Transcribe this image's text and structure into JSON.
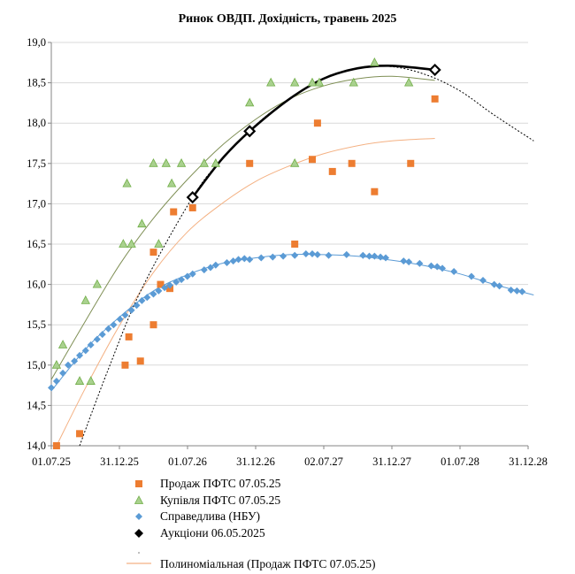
{
  "chart_data": {
    "type": "scatter",
    "title": "Ринок ОВДП. Дохідність, травень 2025",
    "xlabel": "",
    "ylabel": "",
    "x_axis": {
      "min": "2025-07-01",
      "max": "2028-12-31",
      "tick_labels": [
        "01.07.25",
        "31.12.25",
        "01.07.26",
        "31.12.26",
        "02.07.27",
        "31.12.27",
        "01.07.28",
        "31.12.28"
      ]
    },
    "y_axis": {
      "min": 14.0,
      "max": 19.0,
      "tick_labels": [
        "14,0",
        "14,5",
        "15,0",
        "15,5",
        "16,0",
        "16,5",
        "17,0",
        "17,5",
        "18,0",
        "18,5",
        "19,0"
      ]
    },
    "grid": "horizontal",
    "legend_placement": "bottom",
    "colors": {
      "sell": "#ED7D31",
      "buy": "#A9D18E",
      "buy_edge": "#70AD47",
      "fair": "#5B9BD5",
      "auction": "#000000",
      "sell_trend": "#F4B183",
      "buy_trend": "#7F8F55",
      "fair_trend": "#5B9BD5"
    },
    "series": [
      {
        "name": "Продаж ПФТС 07.05.25",
        "marker": "square",
        "points": [
          [
            "2025-07-15",
            14.0
          ],
          [
            "2025-09-15",
            14.15
          ],
          [
            "2026-01-15",
            15.0
          ],
          [
            "2026-01-25",
            15.35
          ],
          [
            "2026-02-25",
            15.05
          ],
          [
            "2026-04-01",
            15.5
          ],
          [
            "2026-04-01",
            16.4
          ],
          [
            "2026-04-20",
            16.0
          ],
          [
            "2026-05-15",
            15.95
          ],
          [
            "2026-05-25",
            16.9
          ],
          [
            "2026-07-15",
            16.95
          ],
          [
            "2026-12-15",
            17.5
          ],
          [
            "2027-04-15",
            16.5
          ],
          [
            "2027-06-01",
            17.55
          ],
          [
            "2027-06-15",
            18.0
          ],
          [
            "2027-07-25",
            17.4
          ],
          [
            "2027-09-15",
            17.5
          ],
          [
            "2027-11-15",
            17.15
          ],
          [
            "2028-02-20",
            17.5
          ],
          [
            "2028-04-25",
            18.3
          ]
        ]
      },
      {
        "name": "Купівля ПФТС 07.05.25",
        "marker": "triangle",
        "points": [
          [
            "2025-07-15",
            15.0
          ],
          [
            "2025-08-01",
            15.25
          ],
          [
            "2025-09-15",
            14.8
          ],
          [
            "2025-10-01",
            15.8
          ],
          [
            "2025-10-15",
            14.8
          ],
          [
            "2025-11-01",
            16.0
          ],
          [
            "2026-01-10",
            16.5
          ],
          [
            "2026-01-20",
            17.25
          ],
          [
            "2026-02-01",
            16.5
          ],
          [
            "2026-03-01",
            16.75
          ],
          [
            "2026-04-01",
            17.5
          ],
          [
            "2026-04-15",
            16.5
          ],
          [
            "2026-05-05",
            17.5
          ],
          [
            "2026-05-20",
            17.25
          ],
          [
            "2026-06-15",
            17.5
          ],
          [
            "2026-08-15",
            17.5
          ],
          [
            "2026-09-15",
            17.5
          ],
          [
            "2026-12-15",
            18.25
          ],
          [
            "2027-02-10",
            18.5
          ],
          [
            "2027-04-15",
            18.5
          ],
          [
            "2027-04-15",
            17.5
          ],
          [
            "2027-06-01",
            18.5
          ],
          [
            "2027-06-20",
            18.5
          ],
          [
            "2027-09-20",
            18.5
          ],
          [
            "2027-11-15",
            18.75
          ],
          [
            "2028-02-15",
            18.5
          ]
        ]
      },
      {
        "name": "Справедлива (НБУ)",
        "marker": "diamond",
        "points": [
          [
            "2025-07-01",
            14.72
          ],
          [
            "2025-07-15",
            14.8
          ],
          [
            "2025-08-01",
            14.9
          ],
          [
            "2025-08-15",
            15.0
          ],
          [
            "2025-09-01",
            15.05
          ],
          [
            "2025-09-15",
            15.12
          ],
          [
            "2025-10-01",
            15.18
          ],
          [
            "2025-10-15",
            15.25
          ],
          [
            "2025-11-01",
            15.32
          ],
          [
            "2025-11-15",
            15.38
          ],
          [
            "2025-12-01",
            15.45
          ],
          [
            "2025-12-15",
            15.5
          ],
          [
            "2026-01-01",
            15.57
          ],
          [
            "2026-01-15",
            15.62
          ],
          [
            "2026-02-01",
            15.68
          ],
          [
            "2026-02-15",
            15.74
          ],
          [
            "2026-03-01",
            15.8
          ],
          [
            "2026-03-15",
            15.84
          ],
          [
            "2026-04-01",
            15.88
          ],
          [
            "2026-04-15",
            15.92
          ],
          [
            "2026-05-01",
            15.96
          ],
          [
            "2026-05-15",
            15.99
          ],
          [
            "2026-06-01",
            16.03
          ],
          [
            "2026-06-15",
            16.06
          ],
          [
            "2026-07-01",
            16.1
          ],
          [
            "2026-07-15",
            16.13
          ],
          [
            "2026-08-15",
            16.18
          ],
          [
            "2026-09-01",
            16.21
          ],
          [
            "2026-09-15",
            16.24
          ],
          [
            "2026-10-15",
            16.27
          ],
          [
            "2026-11-01",
            16.29
          ],
          [
            "2026-11-15",
            16.31
          ],
          [
            "2026-12-01",
            16.32
          ],
          [
            "2026-12-15",
            16.31
          ],
          [
            "2027-01-15",
            16.33
          ],
          [
            "2027-02-15",
            16.34
          ],
          [
            "2027-03-15",
            16.35
          ],
          [
            "2027-04-15",
            16.36
          ],
          [
            "2027-05-15",
            16.38
          ],
          [
            "2027-06-01",
            16.38
          ],
          [
            "2027-06-15",
            16.37
          ],
          [
            "2027-07-15",
            16.36
          ],
          [
            "2027-09-01",
            16.37
          ],
          [
            "2027-10-15",
            16.36
          ],
          [
            "2027-11-01",
            16.35
          ],
          [
            "2027-11-15",
            16.35
          ],
          [
            "2027-12-01",
            16.34
          ],
          [
            "2027-12-15",
            16.33
          ],
          [
            "2028-02-01",
            16.29
          ],
          [
            "2028-02-15",
            16.28
          ],
          [
            "2028-03-15",
            16.26
          ],
          [
            "2028-04-15",
            16.23
          ],
          [
            "2028-05-01",
            16.22
          ],
          [
            "2028-05-15",
            16.2
          ],
          [
            "2028-06-15",
            16.16
          ],
          [
            "2028-08-01",
            16.1
          ],
          [
            "2028-09-01",
            16.05
          ],
          [
            "2028-10-01",
            16.0
          ],
          [
            "2028-10-15",
            15.98
          ],
          [
            "2028-11-15",
            15.93
          ],
          [
            "2028-12-01",
            15.92
          ],
          [
            "2028-12-15",
            15.91
          ]
        ]
      },
      {
        "name": "Аукціони 06.05.2025",
        "marker": "diamond-open",
        "points": [
          [
            "2026-07-15",
            17.08
          ],
          [
            "2026-12-15",
            17.9
          ],
          [
            "2028-04-25",
            18.66
          ]
        ]
      }
    ],
    "trendlines": [
      {
        "name": "Полиноміальная (Продаж ПФТС 07.05.25)",
        "series": "Продаж ПФТС 07.05.25",
        "style": "solid-thin",
        "points": [
          [
            "2025-07-15",
            14.0
          ],
          [
            "2025-10-01",
            14.72
          ],
          [
            "2026-01-01",
            15.5
          ],
          [
            "2026-04-01",
            16.15
          ],
          [
            "2026-07-01",
            16.65
          ],
          [
            "2026-10-01",
            17.0
          ],
          [
            "2027-01-01",
            17.28
          ],
          [
            "2027-04-01",
            17.47
          ],
          [
            "2027-07-01",
            17.62
          ],
          [
            "2027-10-01",
            17.72
          ],
          [
            "2028-01-01",
            17.78
          ],
          [
            "2028-04-25",
            17.81
          ]
        ]
      },
      {
        "series": "Купівля ПФТС 07.05.25",
        "style": "solid-thin",
        "points": [
          [
            "2025-07-01",
            14.82
          ],
          [
            "2025-10-01",
            15.55
          ],
          [
            "2026-01-01",
            16.25
          ],
          [
            "2026-04-01",
            16.82
          ],
          [
            "2026-07-01",
            17.3
          ],
          [
            "2026-10-01",
            17.72
          ],
          [
            "2027-01-01",
            18.05
          ],
          [
            "2027-04-01",
            18.3
          ],
          [
            "2027-07-01",
            18.46
          ],
          [
            "2027-10-01",
            18.55
          ],
          [
            "2028-01-01",
            18.58
          ],
          [
            "2028-04-25",
            18.53
          ]
        ]
      },
      {
        "series": "Справедлива (НБУ)",
        "style": "solid-thin",
        "points": [
          [
            "2025-07-01",
            14.68
          ],
          [
            "2025-10-01",
            15.2
          ],
          [
            "2026-01-01",
            15.6
          ],
          [
            "2026-04-01",
            15.92
          ],
          [
            "2026-07-01",
            16.12
          ],
          [
            "2026-10-01",
            16.26
          ],
          [
            "2027-01-01",
            16.33
          ],
          [
            "2027-04-01",
            16.37
          ],
          [
            "2027-07-01",
            16.37
          ],
          [
            "2027-10-01",
            16.35
          ],
          [
            "2028-01-01",
            16.3
          ],
          [
            "2028-04-01",
            16.23
          ],
          [
            "2028-07-01",
            16.13
          ],
          [
            "2028-10-01",
            16.0
          ],
          [
            "2029-01-15",
            15.87
          ]
        ]
      },
      {
        "series": "Аукціони 06.05.2025",
        "style": "dotted",
        "points": [
          [
            "2025-09-15",
            14.0
          ],
          [
            "2025-12-01",
            14.95
          ],
          [
            "2026-03-01",
            15.95
          ],
          [
            "2026-07-15",
            17.08
          ],
          [
            "2026-10-01",
            17.55
          ],
          [
            "2027-01-01",
            17.98
          ],
          [
            "2027-04-01",
            18.3
          ],
          [
            "2027-07-01",
            18.55
          ],
          [
            "2027-10-01",
            18.68
          ],
          [
            "2028-01-01",
            18.7
          ],
          [
            "2028-04-01",
            18.6
          ],
          [
            "2028-07-01",
            18.4
          ],
          [
            "2028-10-01",
            18.1
          ],
          [
            "2029-01-15",
            17.78
          ]
        ]
      },
      {
        "series": "Аукціони 06.05.2025",
        "style": "solid-bold",
        "points": [
          [
            "2026-07-15",
            17.08
          ],
          [
            "2026-10-01",
            17.55
          ],
          [
            "2026-12-15",
            17.9
          ],
          [
            "2027-04-01",
            18.3
          ],
          [
            "2027-07-01",
            18.55
          ],
          [
            "2027-10-01",
            18.68
          ],
          [
            "2028-01-01",
            18.71
          ],
          [
            "2028-04-25",
            18.66
          ]
        ]
      }
    ],
    "legend": [
      {
        "label": "Продаж ПФТС 07.05.25",
        "marker": "square",
        "color": "#ED7D31"
      },
      {
        "label": "Купівля ПФТС 07.05.25",
        "marker": "triangle",
        "color": "#A9D18E"
      },
      {
        "label": "Справедлива (НБУ)",
        "marker": "diamond",
        "color": "#5B9BD5"
      },
      {
        "label": "Аукціони 06.05.2025",
        "marker": "diamond-filled",
        "color": "#000000"
      },
      {
        "label": "",
        "marker": "dotted-line",
        "color": "#bfbfbf"
      },
      {
        "label": "Полиноміальная (Продаж ПФТС 07.05.25)",
        "marker": "line",
        "color": "#F4B183"
      }
    ]
  }
}
